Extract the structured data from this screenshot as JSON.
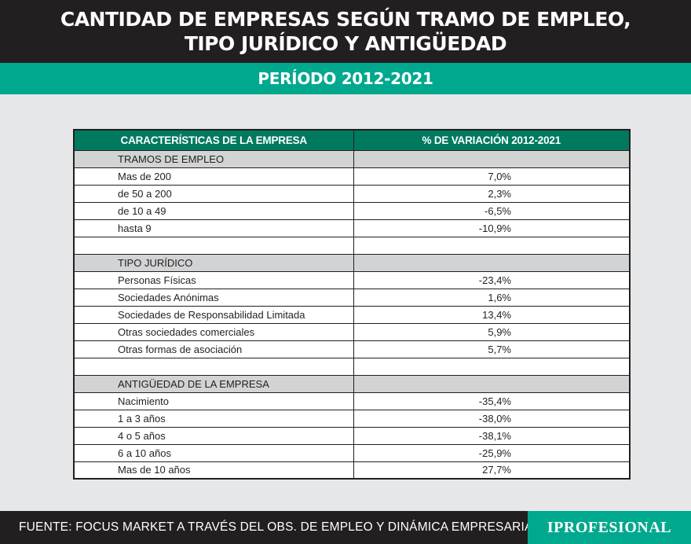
{
  "header": {
    "title_line1": "CANTIDAD DE EMPRESAS SEGÚN TRAMO DE EMPLEO,",
    "title_line2": "TIPO JURÍDICO Y ANTIGÜEDAD",
    "period": "PERÍODO 2012-2021"
  },
  "colors": {
    "header_bg": "#231f20",
    "accent_green": "#00a88e",
    "table_header_green": "#007a5e",
    "section_gray": "#d1d3d4",
    "page_bg": "#e6e7e8"
  },
  "chart_data": {
    "type": "table",
    "columns": [
      "CARACTERÍSTICAS DE LA EMPRESA",
      "% DE VARIACIÓN 2012-2021"
    ],
    "sections": [
      {
        "name": "TRAMOS DE EMPLEO",
        "rows": [
          {
            "label": "Mas de 200",
            "value": "7,0%"
          },
          {
            "label": "de 50 a 200",
            "value": "2,3%"
          },
          {
            "label": "de 10 a 49",
            "value": "-6,5%"
          },
          {
            "label": "hasta 9",
            "value": "-10,9%"
          }
        ]
      },
      {
        "name": "TIPO JURÍDICO",
        "rows": [
          {
            "label": "Personas Físicas",
            "value": "-23,4%"
          },
          {
            "label": "Sociedades Anónimas",
            "value": "1,6%"
          },
          {
            "label": "Sociedades de Responsabilidad Limitada",
            "value": "13,4%"
          },
          {
            "label": "Otras sociedades comerciales",
            "value": "5,9%"
          },
          {
            "label": "Otras formas de asociación",
            "value": "5,7%"
          }
        ]
      },
      {
        "name": "ANTIGÜEDAD DE LA EMPRESA",
        "rows": [
          {
            "label": "Nacimiento",
            "value": "-35,4%"
          },
          {
            "label": "1 a 3 años",
            "value": "-38,0%"
          },
          {
            "label": "4 o 5 años",
            "value": "-38,1%"
          },
          {
            "label": "6 a 10 años",
            "value": "-25,9%"
          },
          {
            "label": "Mas de 10 años",
            "value": "27,7%"
          }
        ]
      }
    ]
  },
  "footer": {
    "source": "FUENTE: FOCUS MARKET A TRAVÉS DEL OBS. DE EMPLEO Y DINÁMICA EMPRESARIAL",
    "brand": "IPROFESIONAL"
  }
}
